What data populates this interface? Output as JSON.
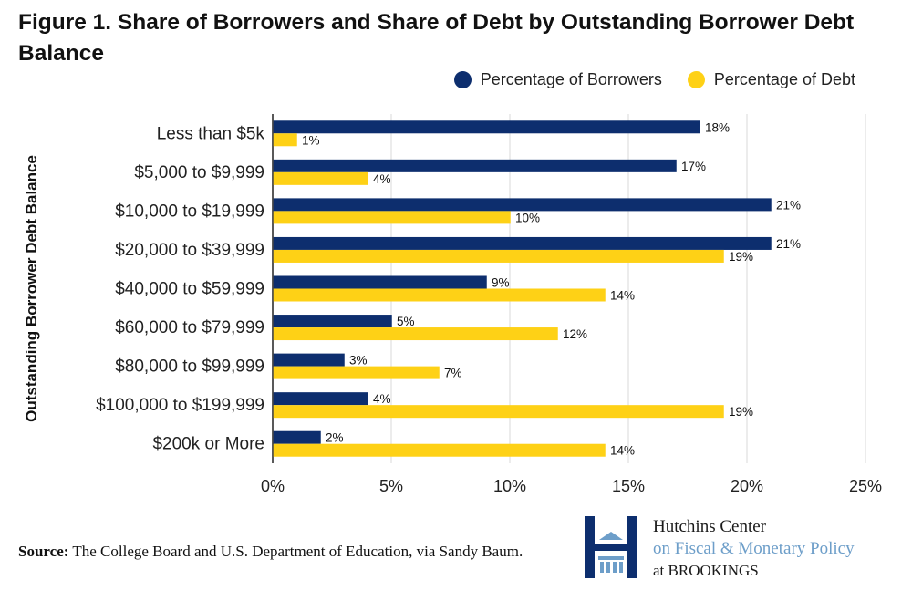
{
  "title": "Figure 1. Share of Borrowers and Share of Debt by Outstanding Borrower Debt Balance",
  "legend": [
    {
      "label": "Percentage of Borrowers",
      "color": "#0d2e6e"
    },
    {
      "label": "Percentage of Debt",
      "color": "#fed116"
    }
  ],
  "source": {
    "label": "Source:",
    "text": "The College Board and U.S. Department of Education, via Sandy Baum."
  },
  "logo": {
    "line1": "Hutchins Center",
    "line2": "on Fiscal & Monetary Policy",
    "line3": "at BROOKINGS",
    "icon": "brookings-h-icon"
  },
  "chart_data": {
    "type": "bar",
    "orientation": "horizontal",
    "title": "Figure 1. Share of Borrowers and Share of Debt by Outstanding Borrower Debt Balance",
    "ylabel": "Outstanding Borrower Debt Balance",
    "xlabel": "",
    "categories": [
      "Less than $5k",
      "$5,000 to $9,999",
      "$10,000 to $19,999",
      "$20,000 to $39,999",
      "$40,000 to $59,999",
      "$60,000 to $79,999",
      "$80,000 to $99,999",
      "$100,000 to $199,999",
      "$200k or More"
    ],
    "series": [
      {
        "name": "Percentage of Borrowers",
        "color": "#0d2e6e",
        "values": [
          18,
          17,
          21,
          21,
          9,
          5,
          3,
          4,
          2
        ],
        "labels": [
          "18%",
          "17%",
          "21%",
          "21%",
          "9%",
          "5%",
          "3%",
          "4%",
          "2%"
        ]
      },
      {
        "name": "Percentage of Debt",
        "color": "#fed116",
        "values": [
          1,
          4,
          10,
          19,
          14,
          12,
          7,
          19,
          14
        ],
        "labels": [
          "1%",
          "4%",
          "10%",
          "19%",
          "14%",
          "12%",
          "7%",
          "19%",
          "14%"
        ]
      }
    ],
    "xlim": [
      0,
      25
    ],
    "xticks": [
      0,
      5,
      10,
      15,
      20,
      25
    ],
    "xtick_labels": [
      "0%",
      "5%",
      "10%",
      "15%",
      "20%",
      "25%"
    ],
    "grid": true,
    "legend_position": "top-right"
  }
}
